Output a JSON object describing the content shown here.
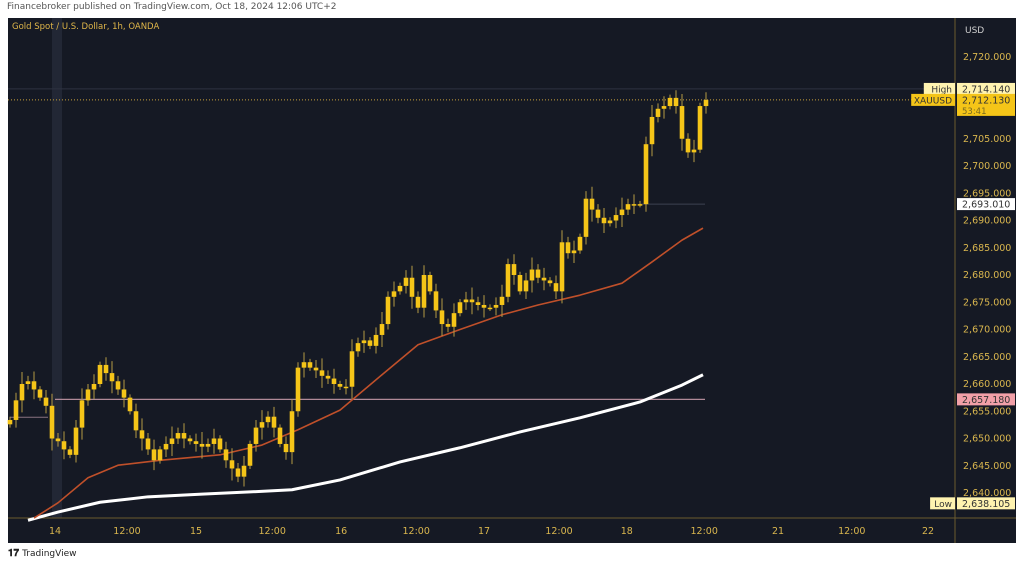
{
  "header": {
    "published": "Financebroker published on TradingView.com, Oct 18, 2024 12:06 UTC+2"
  },
  "footer": {
    "logo": "TradingView"
  },
  "chart_data": {
    "type": "candlestick",
    "title": "Gold Spot / U.S. Dollar, 1h, OANDA",
    "currency": "USD",
    "symbol": "XAUUSD",
    "ylim": [
      2635,
      2723
    ],
    "yticks": [
      2720,
      2705,
      2700,
      2695,
      2690,
      2685,
      2680,
      2675,
      2670,
      2665,
      2660,
      2655,
      2650,
      2645,
      2640
    ],
    "xticks": [
      {
        "label": "14",
        "i": 7.5
      },
      {
        "label": "12:00",
        "i": 19.5
      },
      {
        "label": "15",
        "i": 31
      },
      {
        "label": "12:00",
        "i": 43.7
      },
      {
        "label": "16",
        "i": 55.2
      },
      {
        "label": "12:00",
        "i": 67.7
      },
      {
        "label": "17",
        "i": 79
      },
      {
        "label": "12:00",
        "i": 91.5
      },
      {
        "label": "18",
        "i": 102.8
      },
      {
        "label": "12:00",
        "i": 115.7
      },
      {
        "label": "21",
        "i": 128
      },
      {
        "label": "12:00",
        "i": 140.3
      },
      {
        "label": "22",
        "i": 153
      }
    ],
    "close": [
      2653.4,
      2657,
      2660,
      2660.5,
      2659,
      2657.5,
      2656,
      2650,
      2649.5,
      2648,
      2647,
      2652,
      2657,
      2659,
      2660,
      2663.5,
      2662,
      2660.5,
      2659,
      2657.5,
      2655,
      2651.5,
      2650,
      2648,
      2646,
      2648,
      2649,
      2650,
      2651,
      2650,
      2649.5,
      2649,
      2648.5,
      2649,
      2650,
      2648,
      2646,
      2644.5,
      2643,
      2645,
      2649,
      2652,
      2653,
      2654,
      2652,
      2649,
      2647.5,
      2655,
      2663,
      2664,
      2663,
      2662.5,
      2661.5,
      2661,
      2660,
      2659.5,
      2659.5,
      2666,
      2667.5,
      2668,
      2667,
      2669,
      2671,
      2676,
      2677,
      2678,
      2679.5,
      2676,
      2674,
      2680,
      2677,
      2673.5,
      2671,
      2670.5,
      2673,
      2675,
      2675.5,
      2675,
      2674.5,
      2674,
      2674,
      2674.5,
      2676,
      2682,
      2680,
      2677,
      2679,
      2681,
      2679.5,
      2679,
      2678.5,
      2677,
      2686,
      2684,
      2684.5,
      2687,
      2694,
      2692,
      2690.5,
      2689.5,
      2690,
      2691,
      2692,
      2693,
      2693,
      2693,
      2704,
      2709,
      2710.5,
      2711,
      2712.5,
      2711,
      2705,
      2702.5,
      2703,
      2711,
      2712.13
    ],
    "ma_orange": [
      [
        4,
        2635.4
      ],
      [
        8,
        2638.2
      ],
      [
        13,
        2642.8
      ],
      [
        18,
        2645.1
      ],
      [
        25,
        2646
      ],
      [
        35,
        2647
      ],
      [
        42,
        2648.8
      ],
      [
        48,
        2651.6
      ],
      [
        55,
        2655.2
      ],
      [
        62,
        2661.7
      ],
      [
        68,
        2667.2
      ],
      [
        75,
        2670
      ],
      [
        82,
        2672.7
      ],
      [
        88,
        2674.5
      ],
      [
        95,
        2676.3
      ],
      [
        102,
        2678.5
      ],
      [
        107,
        2682.4
      ],
      [
        112,
        2686.4
      ],
      [
        115.5,
        2688.6
      ]
    ],
    "ma_white": [
      [
        3,
        2635
      ],
      [
        8,
        2636.5
      ],
      [
        15,
        2638.3
      ],
      [
        23,
        2639.3
      ],
      [
        32,
        2639.8
      ],
      [
        40,
        2640.2
      ],
      [
        47,
        2640.6
      ],
      [
        55,
        2642.4
      ],
      [
        65,
        2645.7
      ],
      [
        75,
        2648.3
      ],
      [
        85,
        2651.2
      ],
      [
        95,
        2653.8
      ],
      [
        105,
        2656.7
      ],
      [
        112,
        2659.8
      ],
      [
        115.5,
        2661.7
      ]
    ],
    "price_labels": [
      {
        "tag": "High",
        "value": "2,714.140",
        "price": 2714.14,
        "bg": "#fff3b0",
        "fg": "#333"
      },
      {
        "tag": "XAUUSD",
        "value": "2,712.130",
        "countdown": "53:41",
        "price": 2712.13,
        "bg": "#f5c518",
        "fg": "#333"
      },
      {
        "tag": "",
        "value": "2,693.010",
        "price": 2693.01,
        "bg": "#ffffff",
        "fg": "#333"
      },
      {
        "tag": "",
        "value": "2,657.180",
        "price": 2657.18,
        "bg": "#f2a0a8",
        "fg": "#333"
      },
      {
        "tag": "Low",
        "value": "2,638.105",
        "price": 2638.105,
        "bg": "#fff3b0",
        "fg": "#333"
      }
    ],
    "colors": {
      "candle": "#f5c518",
      "wick": "#b59a45",
      "ma_orange": "#c0502a",
      "ma_white": "#ffffff",
      "axis_text": "#d9b64e",
      "background": "#151924"
    }
  }
}
